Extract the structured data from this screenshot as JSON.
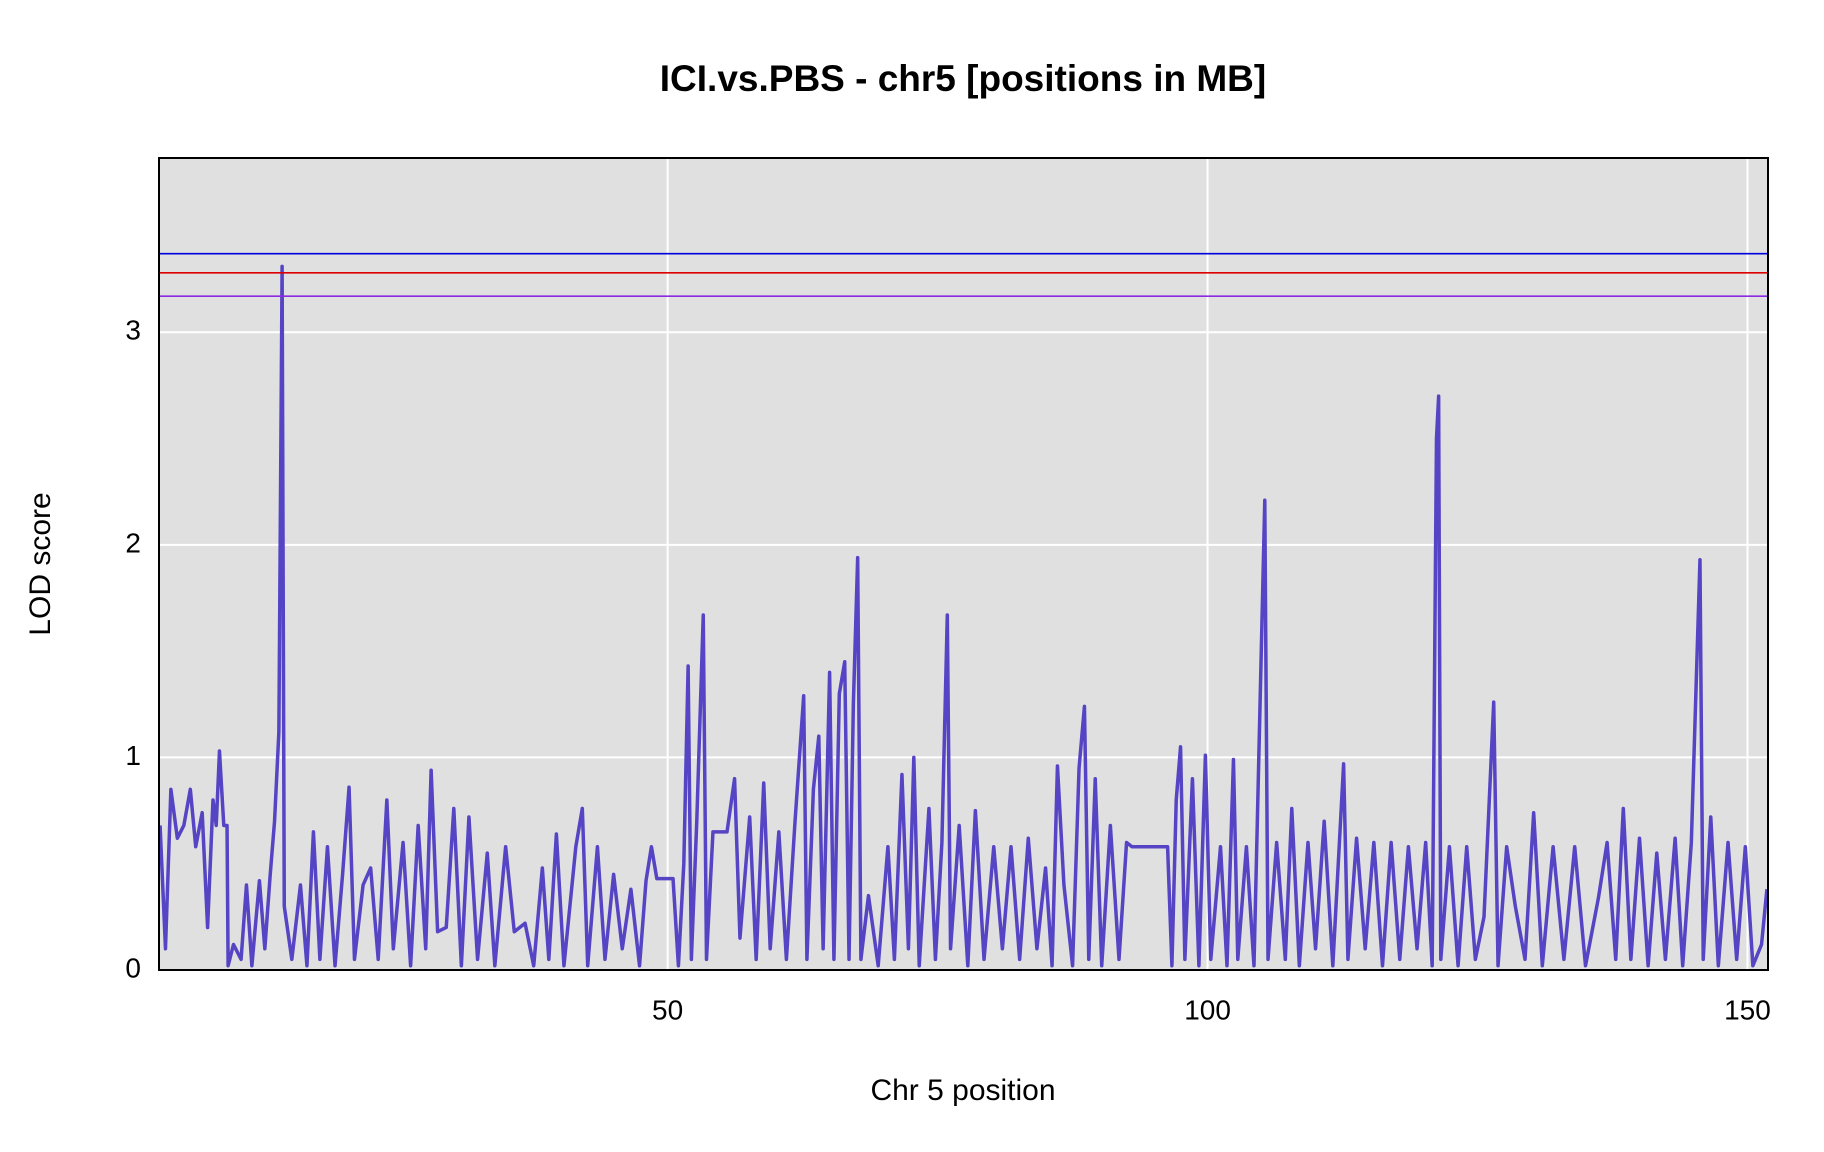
{
  "chart_data": {
    "type": "line",
    "title": "ICI.vs.PBS - chr5 [positions in MB]",
    "xlabel": "Chr 5 position",
    "ylabel": "LOD score",
    "xlim": [
      2.9,
      151.9
    ],
    "ylim": [
      0,
      3.82
    ],
    "xticks": [
      50,
      100,
      150
    ],
    "yticks": [
      0,
      1,
      2,
      3
    ],
    "grid": true,
    "thresholds": [
      {
        "value": 3.37,
        "color": "#0000dd"
      },
      {
        "value": 3.28,
        "color": "#dd0000"
      },
      {
        "value": 3.17,
        "color": "#8a2be2"
      }
    ],
    "x": [
      3.0,
      3.5,
      4.0,
      4.6,
      5.2,
      5.8,
      6.3,
      6.9,
      7.4,
      7.9,
      8.2,
      8.5,
      8.9,
      9.2,
      9.3,
      9.8,
      10.5,
      11.0,
      11.5,
      12.2,
      12.7,
      13.2,
      13.6,
      14.0,
      14.3,
      14.5,
      15.2,
      16.0,
      16.6,
      17.2,
      17.8,
      18.5,
      19.2,
      19.9,
      20.5,
      21.0,
      21.8,
      22.5,
      23.2,
      24.0,
      24.6,
      25.5,
      26.2,
      26.9,
      27.6,
      28.1,
      28.7,
      29.5,
      30.2,
      30.9,
      31.6,
      32.4,
      33.3,
      34.0,
      35.0,
      35.8,
      36.8,
      37.6,
      38.4,
      39.0,
      39.7,
      40.4,
      41.5,
      42.1,
      42.6,
      43.5,
      44.2,
      45.0,
      45.8,
      46.6,
      47.4,
      48.0,
      48.5,
      49.0,
      50.5,
      51.0,
      51.5,
      51.9,
      52.2,
      52.7,
      53.3,
      53.6,
      54.2,
      55.5,
      56.2,
      56.7,
      57.6,
      58.2,
      58.9,
      59.5,
      60.3,
      61.0,
      61.8,
      62.6,
      62.9,
      63.5,
      64.0,
      64.4,
      65.0,
      65.4,
      65.9,
      66.4,
      66.8,
      67.2,
      67.6,
      67.9,
      68.6,
      69.5,
      70.4,
      71.0,
      71.7,
      72.3,
      72.8,
      73.3,
      74.2,
      74.8,
      75.4,
      75.9,
      76.2,
      77.0,
      77.8,
      78.5,
      79.3,
      80.2,
      81.0,
      81.8,
      82.6,
      83.4,
      84.2,
      85.0,
      85.6,
      86.1,
      86.7,
      87.5,
      88.1,
      88.6,
      89.0,
      89.6,
      90.2,
      91.0,
      91.8,
      92.5,
      93.0,
      96.3,
      96.7,
      97.1,
      97.5,
      97.9,
      98.6,
      99.2,
      99.8,
      100.3,
      101.2,
      101.8,
      102.4,
      102.8,
      103.6,
      104.3,
      105.3,
      105.6,
      106.4,
      107.2,
      107.8,
      108.5,
      109.3,
      110.0,
      110.8,
      111.6,
      112.6,
      113.0,
      113.8,
      114.6,
      115.4,
      116.2,
      117.0,
      117.8,
      118.6,
      119.4,
      120.2,
      120.8,
      121.2,
      121.4,
      121.6,
      122.4,
      123.2,
      124.0,
      124.8,
      125.6,
      126.5,
      126.9,
      127.7,
      128.5,
      129.4,
      130.2,
      131.0,
      132.0,
      133.0,
      134.0,
      135.0,
      136.2,
      137.0,
      137.8,
      138.5,
      139.2,
      140.0,
      140.8,
      141.6,
      142.4,
      143.3,
      144.0,
      144.8,
      145.6,
      145.9,
      146.6,
      147.3,
      148.2,
      149.0,
      149.8,
      150.5,
      151.3,
      151.8
    ],
    "series": [
      {
        "name": "LOD",
        "color": "#5544c4",
        "values": [
          0.68,
          0.1,
          0.85,
          0.62,
          0.68,
          0.85,
          0.58,
          0.74,
          0.2,
          0.8,
          0.68,
          1.03,
          0.68,
          0.68,
          0.02,
          0.12,
          0.05,
          0.4,
          0.02,
          0.42,
          0.1,
          0.45,
          0.7,
          1.12,
          3.31,
          0.3,
          0.05,
          0.4,
          0.02,
          0.65,
          0.05,
          0.58,
          0.02,
          0.45,
          0.86,
          0.05,
          0.4,
          0.48,
          0.05,
          0.8,
          0.1,
          0.6,
          0.02,
          0.68,
          0.1,
          0.94,
          0.18,
          0.2,
          0.76,
          0.02,
          0.72,
          0.05,
          0.55,
          0.02,
          0.58,
          0.18,
          0.22,
          0.02,
          0.48,
          0.05,
          0.64,
          0.02,
          0.58,
          0.76,
          0.02,
          0.58,
          0.05,
          0.45,
          0.1,
          0.38,
          0.02,
          0.42,
          0.58,
          0.43,
          0.43,
          0.02,
          0.5,
          1.43,
          0.05,
          0.7,
          1.67,
          0.05,
          0.65,
          0.65,
          0.9,
          0.15,
          0.72,
          0.05,
          0.88,
          0.1,
          0.65,
          0.05,
          0.7,
          1.29,
          0.05,
          0.85,
          1.1,
          0.1,
          1.4,
          0.05,
          1.3,
          1.45,
          0.05,
          1.25,
          1.94,
          0.05,
          0.35,
          0.02,
          0.58,
          0.05,
          0.92,
          0.1,
          1.0,
          0.02,
          0.76,
          0.05,
          0.6,
          1.67,
          0.1,
          0.68,
          0.02,
          0.75,
          0.05,
          0.58,
          0.1,
          0.58,
          0.05,
          0.62,
          0.1,
          0.48,
          0.02,
          0.96,
          0.4,
          0.02,
          0.95,
          1.24,
          0.05,
          0.9,
          0.02,
          0.68,
          0.05,
          0.6,
          0.58,
          0.58,
          0.02,
          0.8,
          1.05,
          0.05,
          0.9,
          0.02,
          1.01,
          0.05,
          0.58,
          0.02,
          0.99,
          0.05,
          0.58,
          0.02,
          2.21,
          0.05,
          0.6,
          0.05,
          0.76,
          0.02,
          0.6,
          0.1,
          0.7,
          0.02,
          0.97,
          0.05,
          0.62,
          0.1,
          0.6,
          0.02,
          0.6,
          0.05,
          0.58,
          0.1,
          0.6,
          0.02,
          2.5,
          2.7,
          0.05,
          0.58,
          0.02,
          0.58,
          0.05,
          0.25,
          1.26,
          0.02,
          0.58,
          0.3,
          0.05,
          0.74,
          0.02,
          0.58,
          0.05,
          0.58,
          0.02,
          0.34,
          0.6,
          0.05,
          0.76,
          0.05,
          0.62,
          0.02,
          0.55,
          0.05,
          0.62,
          0.02,
          0.6,
          1.93,
          0.05,
          0.72,
          0.02,
          0.6,
          0.05,
          0.58,
          0.02,
          0.12,
          0.38
        ]
      }
    ]
  }
}
